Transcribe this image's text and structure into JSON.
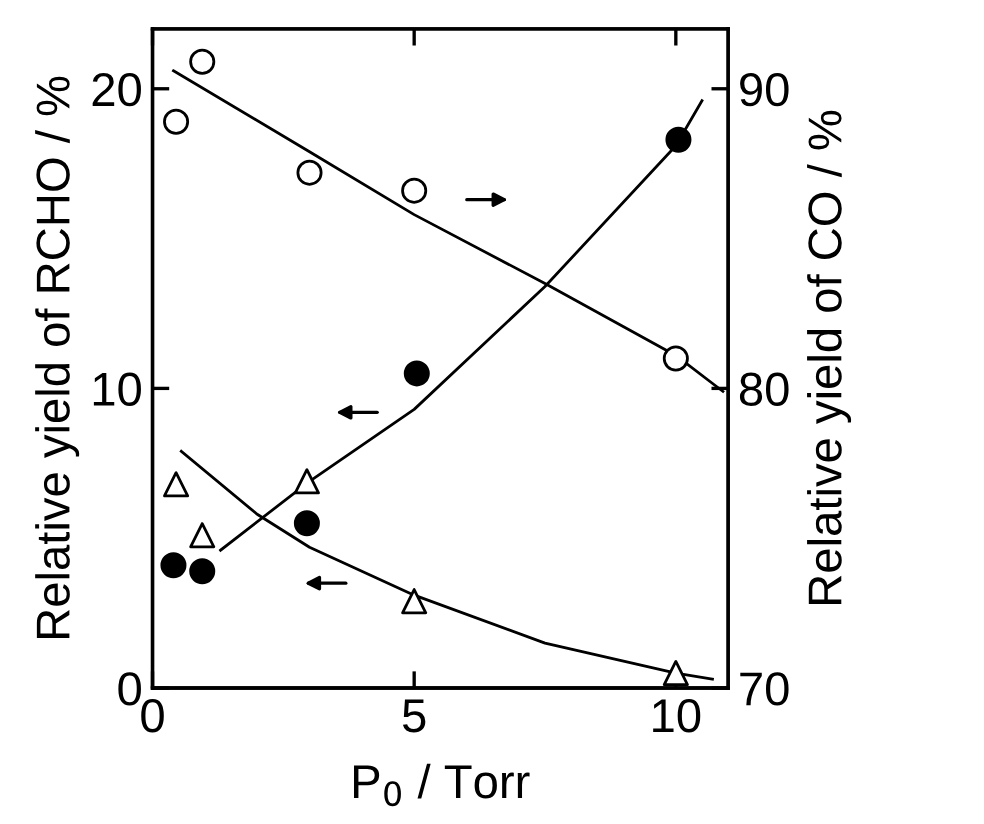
{
  "chart_data": {
    "type": "scatter",
    "xlabel": "P$_{0}$ / Torr",
    "ylabel": "Relative yield of RCHO / %",
    "y2label": "Relative yield of CO / %",
    "xlim": [
      0,
      11
    ],
    "xticks": [
      0,
      5,
      10
    ],
    "ylim": [
      0,
      22
    ],
    "yticks": [
      0,
      10,
      20
    ],
    "y2lim": [
      70,
      92
    ],
    "y2ticks": [
      70,
      80,
      90
    ],
    "grid": false,
    "series": [
      {
        "marker": "circle",
        "color": "#000000",
        "x": [
          0.4,
          0.95,
          2.95,
          5.05,
          10.05
        ],
        "values": [
          4.1,
          3.9,
          5.5,
          10.5,
          18.3
        ]
      },
      {
        "marker": "triangle",
        "color": "#ffffff",
        "x": [
          0.45,
          0.95,
          2.95,
          5.0,
          10.0
        ],
        "values": [
          6.8,
          5.1,
          6.9,
          2.9,
          0.5
        ]
      },
      {
        "marker": "circle",
        "color": "#ffffff",
        "axis": "y2",
        "x": [
          0.45,
          0.95,
          3.0,
          5.0,
          10.0
        ],
        "values": [
          88.9,
          90.9,
          87.2,
          86.6,
          81.0
        ]
      },
      {
        "type": "line",
        "color": "#000000",
        "x": [
          1.3,
          3.0,
          5.0,
          7.5,
          10.0,
          10.5
        ],
        "values": [
          4.6,
          6.9,
          9.3,
          13.4,
          18.1,
          19.6
        ]
      },
      {
        "type": "line",
        "color": "#000000",
        "x": [
          0.55,
          2.0,
          3.0,
          5.0,
          7.5,
          10.0,
          10.7
        ],
        "values": [
          7.9,
          5.8,
          4.7,
          3.1,
          1.5,
          0.5,
          0.3
        ]
      },
      {
        "type": "line",
        "color": "#000000",
        "axis": "y2",
        "x": [
          0.4,
          3.0,
          5.0,
          7.5,
          10.0,
          10.9
        ],
        "values": [
          90.6,
          87.9,
          85.8,
          83.5,
          81.1,
          79.9
        ]
      }
    ]
  }
}
